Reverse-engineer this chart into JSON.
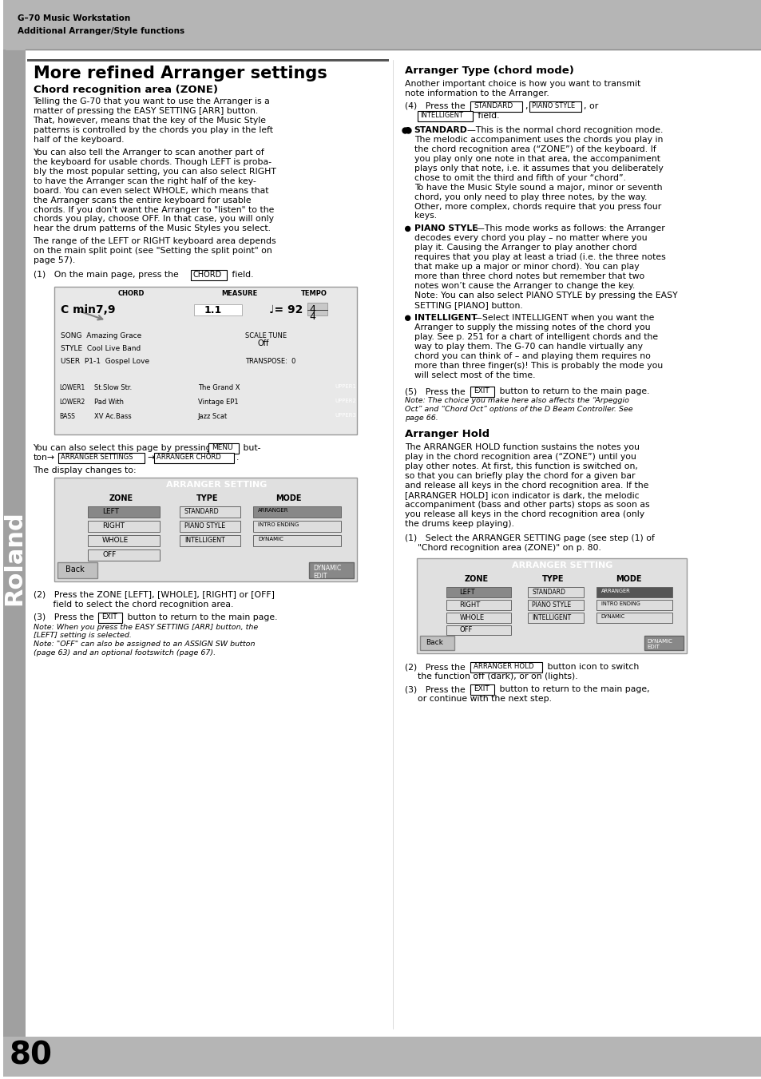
{
  "page_num": "80",
  "header_brand": "G–70 Music Workstation",
  "header_sub": "Additional Arranger/Style functions",
  "bg_color": "#ffffff",
  "header_bg": "#b0b0b0",
  "left_bar_bg": "#909090",
  "section_title": "More refined Arranger settings",
  "subsection1": "Chord recognition area (ZONE)",
  "body1": "Telling the G-70 that you want to use the Arranger is a\nmatter of pressing the EASY SETTING [ARR] button.\nThat, however, means that the key of the Music Style\npatterns is controlled by the chords you play in the left\nhalf of the keyboard.",
  "body2": "You can also tell the Arranger to scan another part of\nthe keyboard for usable chords. Though LEFT is proba-\nbly the most popular setting, you can also select RIGHT\nto have the Arranger scan the right half of the key-\nboard. You can even select WHOLE, which means that\nthe Arranger scans the entire keyboard for usable\nchords. If you don’t want the Arranger to “listen” to the\nchords you play, choose OFF. In that case, you will only\nhear the drum patterns of the Music Styles you select.",
  "body3": "The range of the LEFT or RIGHT keyboard area depends\non the main split point (see “Setting the split point” on\npage 57).",
  "step1": "(1) On the main page, press the [CHORD] field.",
  "step2": "You can also select this page by pressing [MENU] but-\nton→[ARRANGER SETTINGS]→[ARRANGER CHORD].",
  "step3_label": "The display changes to:",
  "step_2_3": "(2) Press the ZONE [LEFT], [WHOLE], [RIGHT] or [OFF]\n   field to select the chord recognition area.",
  "step_2_4": "(3) Press the [EXIT] button to return to the main page.\nNote: When you press the EASY SETTING [ARR] button, the\n[LEFT] setting is selected.\nNote: “OFF” can also be assigned to an ASSIGN SW button\n(page 63) and an optional footswitch (page 67).",
  "right_section": "Arranger Type (chord mode)",
  "right_body1": "Another important choice is how you want to transmit\nnote information to the Arranger.",
  "right_step4": "(4) Press the [STANDARD], [PIANO STYLE], or\n   [INTELLIGENT] field.",
  "bullet1_title": "STANDARD",
  "bullet1": "—This is the normal chord recognition mode.\nThe melodic accompaniment uses the chords you play in\nthe chord recognition area (“ZONE”) of the keyboard. If\nyou play only one note in that area, the accompaniment\nplays only that note, i.e. it assumes that you deliberately\nchose to omit the third and fifth of your “chord”.\nTo have the Music Style sound a major, minor or seventh\nchord, you only need to play three notes, by the way.\nOther, more complex, chords require that you press four\nkeys.",
  "bullet2_title": "PIANO STYLE",
  "bullet2": "—This mode works as follows: the Arranger\ndecodes every chord you play – no matter where you\nplay it. Causing the Arranger to play another chord\nrequires that you play at least a triad (i.e. the three notes\nthat make up a major or minor chord). You can play\nmore than three chord notes but remember that two\nnotes won’t cause the Arranger to change the key.\nNote: You can also select PIANO STYLE by pressing the EASY\nSETTING [PIANO] button.",
  "bullet3_title": "INTELLIGENT",
  "bullet3": "—Select INTELLIGENT when you want the\nArranger to supply the missing notes of the chord you\nplay. See p. 251 for a chart of intelligent chords and the\nway to play them. The G-70 can handle virtually any\nchord you can think of – and playing them requires no\nmore than three finger(s)! This is probably the mode you\nwill select most of the time.",
  "right_step5": "(5) Press the [EXIT] button to return to the main page.\nNote: The choice you make here also affects the “Arpeggio\nOct” and “Chord Oct” options of the D Beam Controller. See\npage 66.",
  "arranger_hold_title": "Arranger Hold",
  "arranger_hold_body": "The ARRANGER HOLD function sustains the notes you\nplay in the chord recognition area (“ZONE”) until you\nplay other notes. At first, this function is switched on,\nso that you can briefly play the chord for a given bar\nand release all keys in the chord recognition area. If the\n[ARRANGER HOLD] icon indicator is dark, the melodic\naccompaniment (bass and other parts) stops as soon as\nyou release all keys in the chord recognition area (only\nthe drums keep playing).",
  "arr_hold_step1": "(1) Select the ARRANGER SETTING page (see step (1) of\n   “Chord recognition area (ZONE)” on p. 80.",
  "arr_hold_step2": "(2) Press the [ARRANGER HOLD] button icon to switch\n   the function off (dark), or on (lights).",
  "arr_hold_step3": "(3) Press the [EXIT] button to return to the main page,\n   or continue with the next step."
}
